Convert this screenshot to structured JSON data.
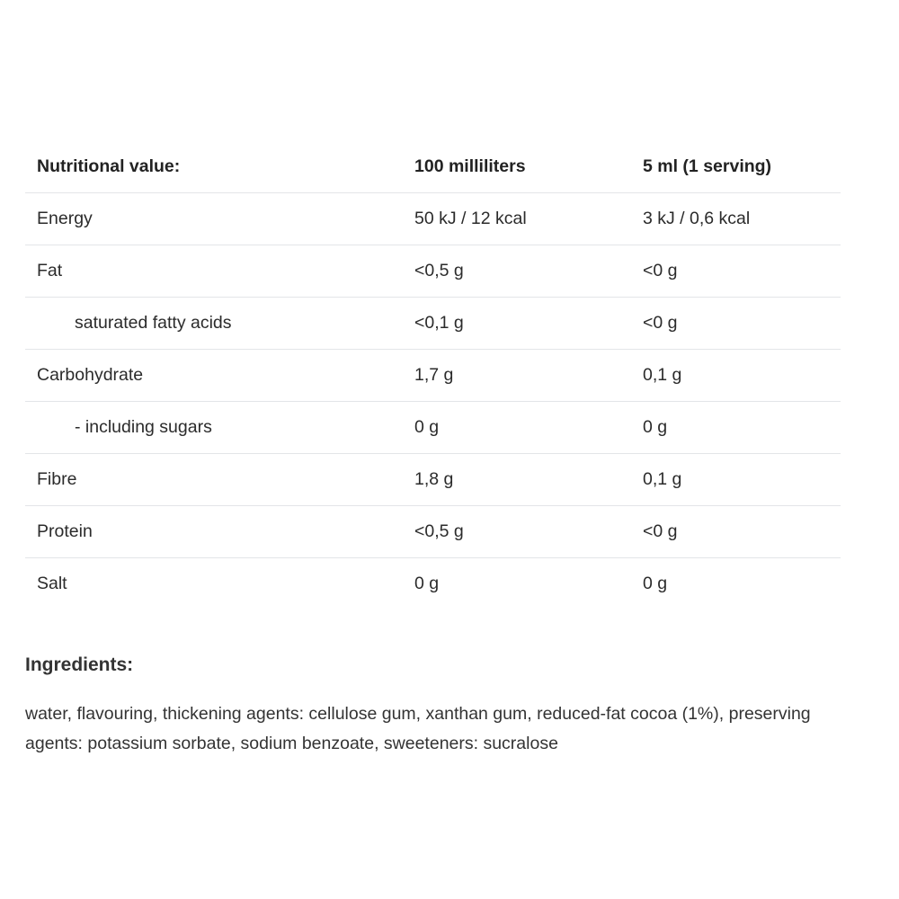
{
  "table": {
    "headers": [
      "Nutritional value:",
      "100 milliliters",
      "5 ml (1 serving)"
    ],
    "rows": [
      {
        "name": "Energy",
        "per100": "50 kJ / 12 kcal",
        "perServing": "3 kJ / 0,6 kcal",
        "indent": false
      },
      {
        "name": "Fat",
        "per100": "<0,5 g",
        "perServing": "<0 g",
        "indent": false
      },
      {
        "name": "saturated fatty acids",
        "per100": "<0,1 g",
        "perServing": "<0 g",
        "indent": true
      },
      {
        "name": "Carbohydrate",
        "per100": "1,7 g",
        "perServing": "0,1 g",
        "indent": false
      },
      {
        "name": "- including sugars",
        "per100": "0 g",
        "perServing": "0 g",
        "indent": true
      },
      {
        "name": "Fibre",
        "per100": "1,8 g",
        "perServing": "0,1 g",
        "indent": false
      },
      {
        "name": "Protein",
        "per100": "<0,5 g",
        "perServing": "<0 g",
        "indent": false
      },
      {
        "name": "Salt",
        "per100": "0 g",
        "perServing": "0 g",
        "indent": false
      }
    ]
  },
  "ingredients": {
    "heading": "Ingredients:",
    "text": "water, flavouring, thickening agents: cellulose gum, xanthan gum, reduced-fat cocoa (1%), preserving agents: potassium sorbate, sodium benzoate, sweeteners: sucralose"
  }
}
